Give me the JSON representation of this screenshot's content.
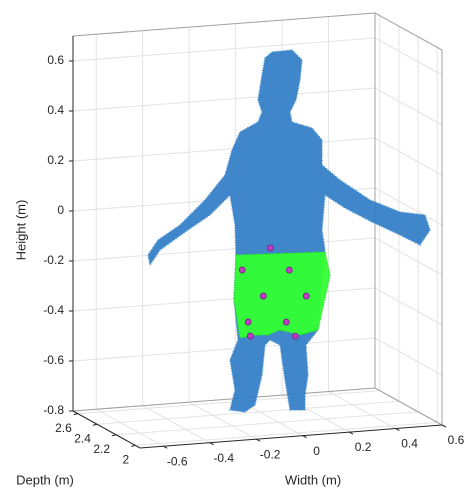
{
  "chart_data": {
    "type": "scatter",
    "xlabel": "Width (m)",
    "ylabel": "Depth (m)",
    "zlabel": "Height (m)",
    "xlim": [
      -0.7,
      0.6
    ],
    "ylim": [
      1.95,
      2.65
    ],
    "zlim": [
      -0.8,
      0.7
    ],
    "xticks": [
      -0.6,
      -0.4,
      -0.2,
      0,
      0.2,
      0.4,
      0.6
    ],
    "yticks": [
      2,
      2.2,
      2.4,
      2.6
    ],
    "zticks": [
      -0.8,
      -0.6,
      -0.4,
      -0.2,
      0,
      0.2,
      0.4,
      0.6
    ],
    "grid": true,
    "color": "#c03cc0",
    "x": [
      -0.116,
      -0.025,
      -0.09,
      -0.081,
      0.087,
      0.16,
      0.074,
      0.113,
      0.005
    ],
    "y": [
      2.3,
      2.3,
      2.3,
      2.3,
      2.3,
      2.3,
      2.3,
      2.3,
      2.3
    ],
    "z": [
      -0.203,
      -0.314,
      -0.413,
      -0.47,
      -0.218,
      -0.327,
      -0.425,
      -0.484,
      -0.124
    ]
  }
}
